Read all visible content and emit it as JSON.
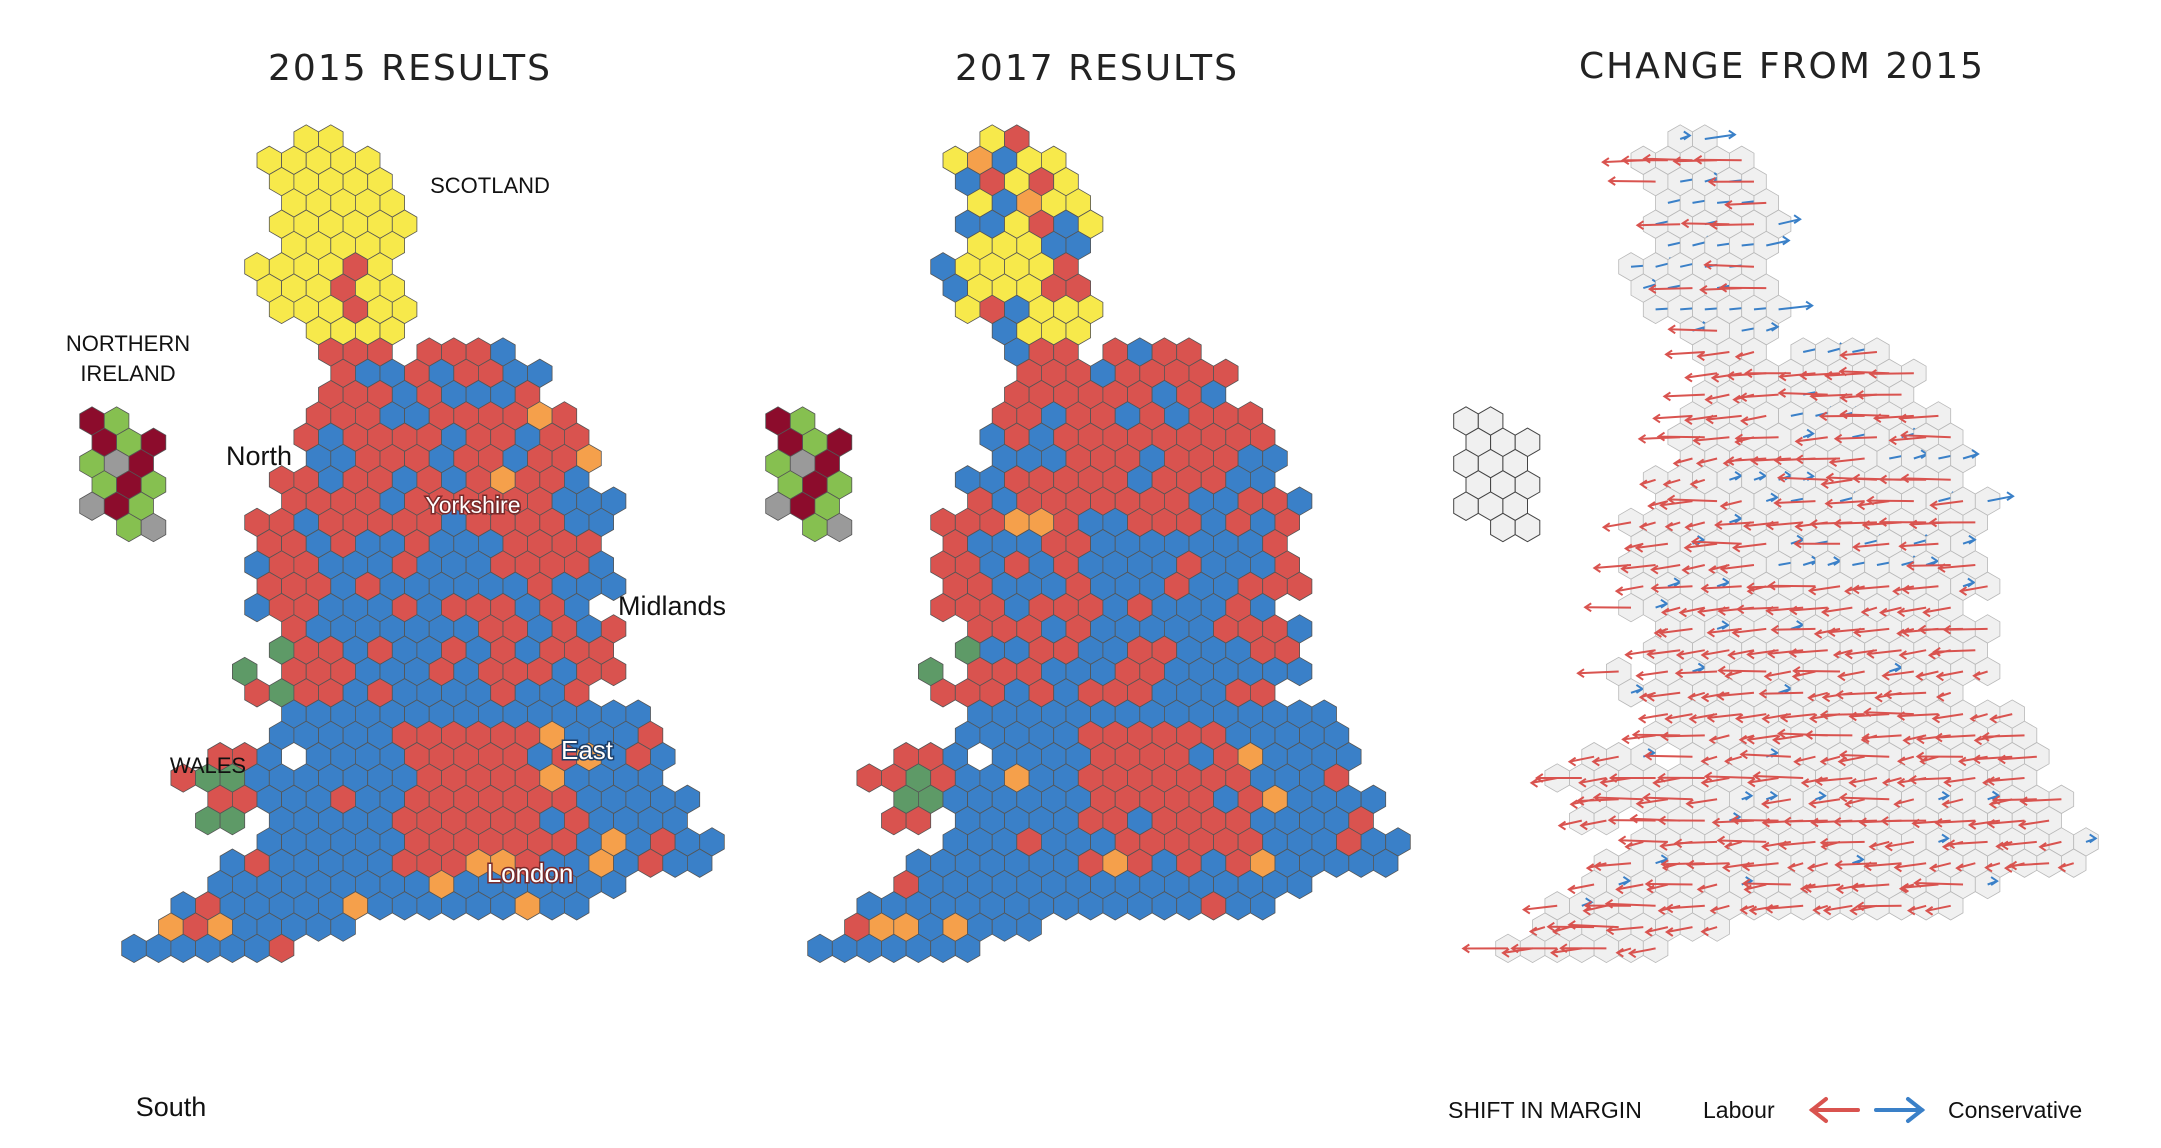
{
  "panels": [
    {
      "id": "p2015",
      "title": "2015 RESULTS"
    },
    {
      "id": "p2017",
      "title": "2017 RESULTS"
    },
    {
      "id": "pchange",
      "title": "CHANGE FROM 2015"
    }
  ],
  "region_labels": {
    "scotland": "SCOTLAND",
    "northern_ireland_line1": "NORTHERN",
    "northern_ireland_line2": "IRELAND",
    "north": "North",
    "yorkshire": "Yorkshire",
    "midlands": "Midlands",
    "wales": "WALES",
    "east": "East",
    "london": "London",
    "south": "South"
  },
  "legend": {
    "title": "SHIFT IN MARGIN",
    "left_label": "Labour",
    "right_label": "Conservative"
  },
  "party_colors": {
    "conservative": "#3a80c8",
    "labour": "#d9534f",
    "snp": "#f7e94b",
    "libdem": "#f5a04b",
    "dup": "#8c0c2c",
    "sinn_fein": "#86c050",
    "plaid": "#5e9a67",
    "green": "#7bc44d",
    "other": "#9a9a9a",
    "ukip": "#7a3a8c"
  },
  "change_colors": {
    "to_labour": "#d9534f",
    "to_conservative": "#3a80c8",
    "hex_fill": "#f0f0f0"
  }
}
